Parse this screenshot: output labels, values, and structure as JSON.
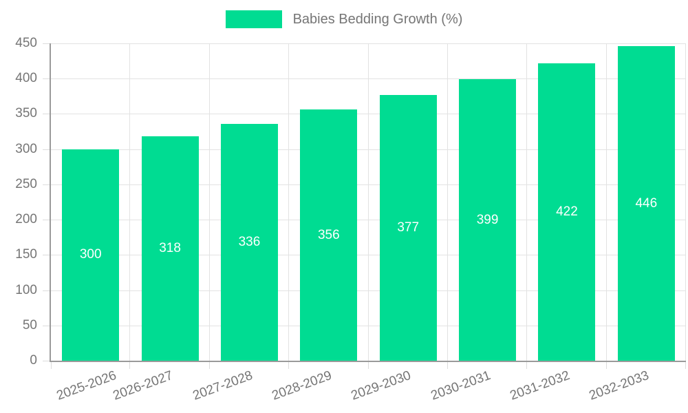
{
  "legend": {
    "label": "Babies Bedding Growth (%)"
  },
  "chart_data": {
    "type": "bar",
    "title": "Babies Bedding Growth (%)",
    "categories": [
      "2025-2026",
      "2026-2027",
      "2027-2028",
      "2028-2029",
      "2029-2030",
      "2030-2031",
      "2031-2032",
      "2032-2033"
    ],
    "values": [
      300,
      318,
      336,
      356,
      377,
      399,
      422,
      446
    ],
    "xlabel": "",
    "ylabel": "",
    "ylim": [
      0,
      450
    ],
    "yticks": [
      0,
      50,
      100,
      150,
      200,
      250,
      300,
      350,
      400,
      450
    ],
    "grid": true,
    "legend_position": "top",
    "data_labels": "centered-white",
    "colors": {
      "bar": "#00DC92",
      "bar_label": "#FFFFFF",
      "axis_text": "#757575",
      "grid_line": "#E2E2E2",
      "axis_line": "#9A9A9A",
      "tick": "#DCDCDC"
    }
  }
}
